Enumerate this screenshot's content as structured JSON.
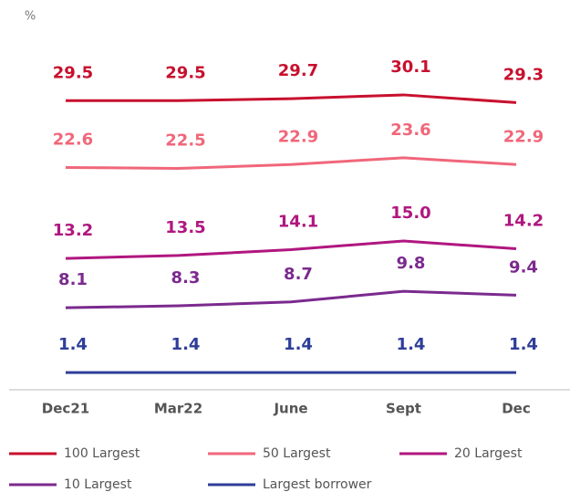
{
  "chart_data": {
    "type": "line",
    "unit_label": "%",
    "categories": [
      "Dec21",
      "Mar22",
      "June",
      "Sept",
      "Dec"
    ],
    "series": [
      {
        "name": "100 Largest",
        "color": "#c8102e",
        "values": [
          29.5,
          29.5,
          29.7,
          30.1,
          29.3
        ],
        "value_labels": [
          "29.5",
          "29.5",
          "29.7",
          "30.1",
          "29.3"
        ]
      },
      {
        "name": "50 Largest",
        "color": "#f0677a",
        "values": [
          22.6,
          22.5,
          22.9,
          23.6,
          22.9
        ],
        "value_labels": [
          "22.6",
          "22.5",
          "22.9",
          "23.6",
          "22.9"
        ]
      },
      {
        "name": "20 Largest",
        "color": "#b0177f",
        "values": [
          13.2,
          13.5,
          14.1,
          15.0,
          14.2
        ],
        "value_labels": [
          "13.2",
          "13.5",
          "14.1",
          "15.0",
          "14.2"
        ]
      },
      {
        "name": "10 Largest",
        "color": "#7b2a8e",
        "values": [
          8.1,
          8.3,
          8.7,
          9.8,
          9.4
        ],
        "value_labels": [
          "8.1",
          "8.3",
          "8.7",
          "9.8",
          "9.4"
        ]
      },
      {
        "name": "Largest borrower",
        "color": "#2e3e99",
        "values": [
          1.4,
          1.4,
          1.4,
          1.4,
          1.4
        ],
        "value_labels": [
          "1.4",
          "1.4",
          "1.4",
          "1.4",
          "1.4"
        ]
      }
    ]
  }
}
